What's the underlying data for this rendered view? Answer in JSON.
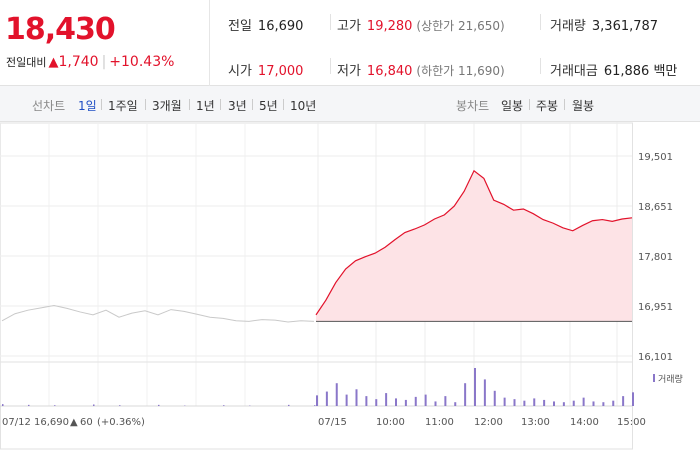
{
  "quote": {
    "price": "18,430",
    "change_caption": "전일대비",
    "change_arrow": "▲",
    "change_value": "1,740",
    "change_pct": "+10.43%",
    "prev_close_label": "전일",
    "prev_close": "16,690",
    "high_label": "고가",
    "high": "19,280",
    "upper_limit": "(상한가 21,650)",
    "volume_label": "거래량",
    "volume": "3,361,787",
    "open_label": "시가",
    "open": "17,000",
    "low_label": "저가",
    "low": "16,840",
    "lower_limit": "(하한가 11,690)",
    "value_label": "거래대금",
    "value": "61,886 백만"
  },
  "tabs": {
    "line_title": "선차트",
    "line_tabs": [
      "1일",
      "1주일",
      "3개월",
      "1년",
      "3년",
      "5년",
      "10년"
    ],
    "active": "1일",
    "candle_title": "봉차트",
    "candle_tabs": [
      "일봉",
      "주봉",
      "월봉"
    ]
  },
  "colors": {
    "up": "#e2122b",
    "prev_day_line": "#c9c9c9",
    "area_fill": "#fde3e6",
    "volume": "#8a77c9",
    "accent_tab": "#1f4ec4"
  },
  "chart_data": {
    "type": "area",
    "ylim": [
      16101,
      19501
    ],
    "y_ticks": [
      "19,501",
      "18,651",
      "17,801",
      "16,951",
      "16,101"
    ],
    "x_ticks": [
      "07/15",
      "10:00",
      "11:00",
      "12:00",
      "13:00",
      "14:00",
      "15:00"
    ],
    "baseline": 16690,
    "prev_day_label": "07/12",
    "prev_day_close": "16,690",
    "prev_day_arrow": "▲",
    "prev_day_change": "60",
    "prev_day_pct": "(+0.36%)",
    "volume_legend": "거래량",
    "series": [
      {
        "x": [
          "09:00",
          "09:10",
          "09:20",
          "09:30",
          "09:45",
          "10:00",
          "10:10",
          "10:20",
          "10:30",
          "10:45",
          "11:00",
          "11:15",
          "11:30",
          "11:45",
          "12:00",
          "12:10",
          "12:20",
          "12:25",
          "12:35",
          "12:50",
          "13:00",
          "13:15",
          "13:30",
          "13:45",
          "14:00",
          "14:10",
          "14:20",
          "14:30",
          "14:40",
          "14:50",
          "15:00",
          "15:10",
          "15:20"
        ],
        "values": [
          16800,
          17050,
          17350,
          17580,
          17720,
          17790,
          17850,
          17950,
          18080,
          18200,
          18260,
          18330,
          18430,
          18500,
          18650,
          18900,
          19250,
          19120,
          18750,
          18680,
          18580,
          18600,
          18520,
          18420,
          18360,
          18280,
          18230,
          18320,
          18400,
          18420,
          18390,
          18430,
          18450
        ]
      }
    ],
    "prev_day_series": {
      "values": [
        16700,
        16820,
        16880,
        16920,
        16960,
        16910,
        16850,
        16800,
        16880,
        16760,
        16830,
        16870,
        16800,
        16890,
        16860,
        16810,
        16760,
        16740,
        16700,
        16690,
        16720,
        16710,
        16680,
        16700,
        16690
      ]
    },
    "volume": {
      "prev_day": [
        5,
        0,
        3,
        0,
        2,
        0,
        0,
        4,
        0,
        2,
        0,
        0,
        3,
        0,
        1,
        0,
        0,
        2,
        0,
        1,
        0,
        0,
        3,
        0,
        2
      ],
      "today": [
        28,
        38,
        60,
        30,
        44,
        26,
        18,
        34,
        20,
        16,
        24,
        30,
        12,
        26,
        10,
        60,
        100,
        70,
        40,
        22,
        18,
        14,
        20,
        16,
        12,
        10,
        14,
        22,
        12,
        10,
        14,
        26,
        36
      ]
    }
  }
}
